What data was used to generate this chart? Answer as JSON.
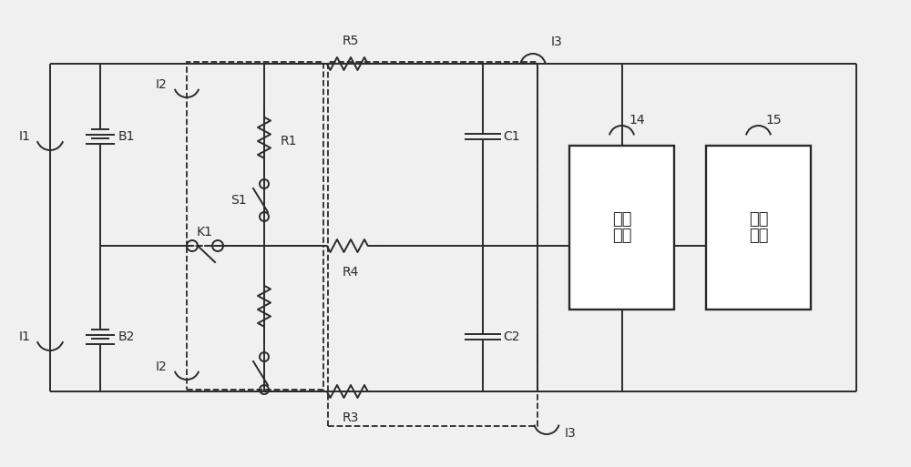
{
  "bg_color": "#f0f0f0",
  "line_color": "#2a2a2a",
  "dashed_color": "#2a2a2a",
  "lw": 1.4,
  "fig_width": 10.0,
  "fig_height": 5.13,
  "labels": {
    "I1_top": "I1",
    "I1_bot": "I1",
    "I2_top": "I2",
    "I2_bot": "I2",
    "B2": "B2",
    "B1": "B1",
    "K1": "K1",
    "S1": "S1",
    "R1": "R1",
    "R3": "R3",
    "R4": "R4",
    "R5": "R5",
    "C2": "C2",
    "C1": "C1",
    "I3_top": "I3",
    "I3_bot": "I3",
    "box1_line1": "采集",
    "box1_line2": "电路",
    "box2_line1": "控制",
    "box2_line2": "电路",
    "label14": "14",
    "label15": "15"
  }
}
